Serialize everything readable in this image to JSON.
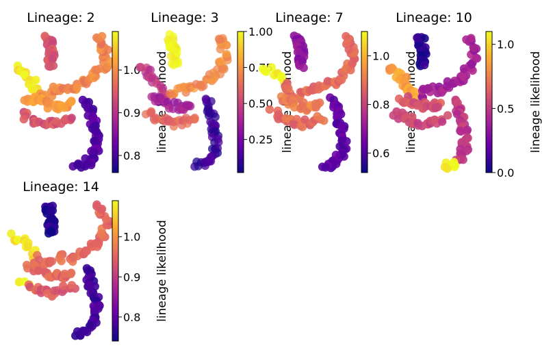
{
  "colormap": "plasma",
  "colormap_stops": [
    "#0d0887",
    "#6a00a8",
    "#b12a90",
    "#e16462",
    "#fca636",
    "#f0f921"
  ],
  "chart_data": [
    {
      "type": "scatter",
      "title": "Lineage: 2",
      "colorbar_label": "lineage likelihood",
      "color_range": [
        0.76,
        1.09
      ],
      "colorbar_ticks": [
        {
          "value": 0.8,
          "label": "0.8"
        },
        {
          "value": 0.9,
          "label": "0.9"
        },
        {
          "value": 1.0,
          "label": "1.0"
        }
      ],
      "hot_spots": [
        "upper-left arm",
        "center"
      ]
    },
    {
      "type": "scatter",
      "title": "Lineage: 3",
      "colorbar_label": "lineage likelihood",
      "color_range": [
        0.02,
        1.0
      ],
      "colorbar_ticks": [
        {
          "value": 0.25,
          "label": "0.25"
        },
        {
          "value": 0.5,
          "label": "0.50"
        },
        {
          "value": 0.75,
          "label": "0.75"
        },
        {
          "value": 1.0,
          "label": "1.00"
        }
      ],
      "hot_spots": [
        "top-left cluster"
      ]
    },
    {
      "type": "scatter",
      "title": "Lineage: 7",
      "colorbar_label": "lineage likelihood",
      "color_range": [
        0.52,
        1.1
      ],
      "colorbar_ticks": [
        {
          "value": 0.6,
          "label": "0.6"
        },
        {
          "value": 0.8,
          "label": "0.8"
        },
        {
          "value": 1.0,
          "label": "1.0"
        }
      ],
      "hot_spots": [
        "left tip"
      ]
    },
    {
      "type": "scatter",
      "title": "Lineage: 10",
      "colorbar_label": "lineage likelihood",
      "color_range": [
        0.0,
        1.1
      ],
      "colorbar_ticks": [
        {
          "value": 0.0,
          "label": "0.0"
        },
        {
          "value": 0.5,
          "label": "0.5"
        },
        {
          "value": 1.0,
          "label": "1.0"
        }
      ],
      "hot_spots": [
        "bottom-middle tip",
        "left arm"
      ]
    },
    {
      "type": "scatter",
      "title": "Lineage: 14",
      "colorbar_label": "lineage likelihood",
      "color_range": [
        0.74,
        1.09
      ],
      "colorbar_ticks": [
        {
          "value": 0.8,
          "label": "0.8"
        },
        {
          "value": 0.9,
          "label": "0.9"
        },
        {
          "value": 1.0,
          "label": "1.0"
        }
      ],
      "hot_spots": [
        "left tip"
      ]
    }
  ]
}
